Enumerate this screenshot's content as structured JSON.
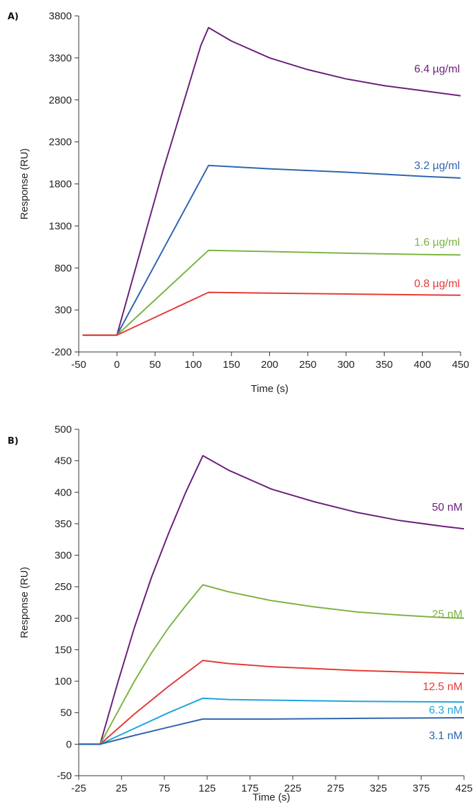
{
  "chart_data": [
    {
      "panel_label": "A)",
      "type": "line",
      "xlabel": "Time (s)",
      "ylabel": "Response (RU)",
      "xlim": [
        -50,
        450
      ],
      "ylim": [
        -200,
        3800
      ],
      "xticks": [
        -50,
        0,
        50,
        100,
        150,
        200,
        250,
        300,
        350,
        400,
        450
      ],
      "yticks": [
        -200,
        300,
        800,
        1300,
        1800,
        2300,
        2800,
        3300,
        3800
      ],
      "series": [
        {
          "name": "6.4 µg/ml",
          "color": "#6b1f7a",
          "x": [
            -45,
            0,
            20,
            40,
            60,
            80,
            100,
            110,
            120,
            150,
            200,
            250,
            300,
            350,
            400,
            450
          ],
          "y": [
            0,
            0,
            650,
            1300,
            1950,
            2550,
            3150,
            3450,
            3660,
            3500,
            3300,
            3160,
            3050,
            2970,
            2910,
            2850
          ]
        },
        {
          "name": "3.2 µg/ml",
          "color": "#2e64ae",
          "x": [
            -45,
            0,
            120,
            200,
            300,
            400,
            450
          ],
          "y": [
            0,
            0,
            2020,
            1980,
            1940,
            1890,
            1870
          ]
        },
        {
          "name": "1.6 µg/ml",
          "color": "#7cb342",
          "x": [
            -45,
            0,
            120,
            200,
            300,
            400,
            450
          ],
          "y": [
            0,
            0,
            1010,
            995,
            975,
            960,
            955
          ]
        },
        {
          "name": "0.8 µg/ml",
          "color": "#e53935",
          "x": [
            -45,
            0,
            120,
            200,
            300,
            400,
            450
          ],
          "y": [
            0,
            0,
            510,
            500,
            490,
            480,
            475
          ]
        }
      ]
    },
    {
      "panel_label": "B)",
      "type": "line",
      "xlabel": "Time (s)",
      "ylabel": "Response (RU)",
      "xlim": [
        -25,
        425
      ],
      "ylim": [
        -50,
        500
      ],
      "xticks": [
        -25,
        25,
        75,
        125,
        175,
        225,
        275,
        325,
        375,
        425
      ],
      "yticks": [
        -50,
        0,
        50,
        100,
        150,
        200,
        250,
        300,
        350,
        400,
        450,
        500
      ],
      "series": [
        {
          "name": "50 nM",
          "color": "#6b1f7a",
          "x": [
            -25,
            0,
            20,
            40,
            60,
            80,
            100,
            120,
            150,
            200,
            250,
            300,
            350,
            400,
            425
          ],
          "y": [
            0,
            0,
            95,
            185,
            265,
            335,
            400,
            458,
            435,
            405,
            385,
            368,
            355,
            346,
            342
          ]
        },
        {
          "name": "25 nM",
          "color": "#7cb342",
          "x": [
            -25,
            0,
            20,
            40,
            60,
            80,
            100,
            120,
            150,
            200,
            250,
            300,
            350,
            400,
            425
          ],
          "y": [
            0,
            0,
            50,
            100,
            145,
            185,
            220,
            253,
            242,
            228,
            218,
            210,
            205,
            201,
            200
          ]
        },
        {
          "name": "12.5 nM",
          "color": "#e53935",
          "x": [
            -25,
            0,
            40,
            80,
            120,
            150,
            200,
            250,
            300,
            350,
            400,
            425
          ],
          "y": [
            0,
            0,
            48,
            92,
            133,
            128,
            123,
            120,
            117,
            115,
            113,
            112
          ]
        },
        {
          "name": "6.3 nM",
          "color": "#1ea3dc",
          "x": [
            -25,
            0,
            40,
            80,
            120,
            150,
            200,
            300,
            425
          ],
          "y": [
            0,
            0,
            25,
            50,
            73,
            71,
            70,
            68,
            67
          ]
        },
        {
          "name": "3.1 nM",
          "color": "#2e64ae",
          "x": [
            -25,
            0,
            40,
            80,
            120,
            150,
            200,
            300,
            425
          ],
          "y": [
            0,
            0,
            14,
            27,
            40,
            40,
            40,
            41,
            42
          ]
        }
      ]
    }
  ]
}
